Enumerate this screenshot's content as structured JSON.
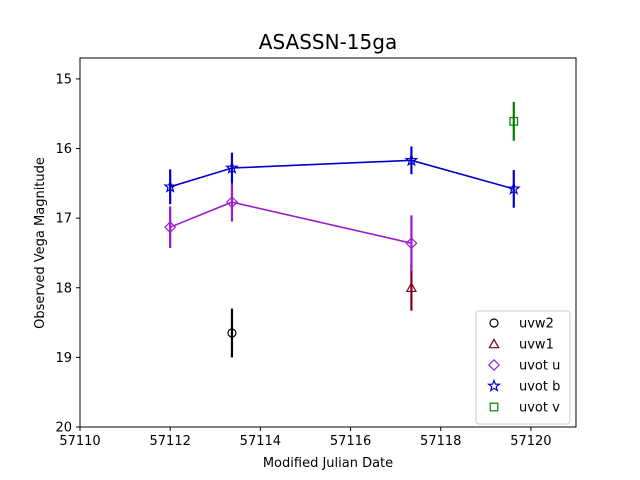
{
  "chart_data": {
    "type": "scatter",
    "title": "ASASSN-15ga",
    "xlabel": "Modified Julian Date",
    "ylabel": "Observed Vega Magnitude",
    "xlim": [
      57110,
      57121
    ],
    "ylim": [
      20,
      14.7
    ],
    "y_inverted": true,
    "x_ticks": [
      57110,
      57112,
      57114,
      57116,
      57118,
      57120
    ],
    "y_ticks": [
      15,
      16,
      17,
      18,
      19,
      20
    ],
    "grid": false,
    "legend_position": "bottom-right",
    "series": [
      {
        "name": "uvw2",
        "color": "#000000",
        "marker": "circle",
        "line": false,
        "points": [
          {
            "x": 57113.37,
            "y": 18.65,
            "err": 0.35
          }
        ]
      },
      {
        "name": "uvw1",
        "color": "#800020",
        "marker": "triangle",
        "line": false,
        "points": [
          {
            "x": 57117.35,
            "y": 18.0,
            "err": 0.33
          }
        ]
      },
      {
        "name": "uvot u",
        "color": "#9b1bd0",
        "marker": "diamond",
        "line": true,
        "points": [
          {
            "x": 57112.0,
            "y": 17.13,
            "err": 0.3
          },
          {
            "x": 57113.37,
            "y": 16.77,
            "err": 0.28
          },
          {
            "x": 57117.35,
            "y": 17.36,
            "err": 0.4
          }
        ]
      },
      {
        "name": "uvot b",
        "color": "#0000cc",
        "marker": "star",
        "line": true,
        "points": [
          {
            "x": 57112.0,
            "y": 16.55,
            "err": 0.25
          },
          {
            "x": 57113.37,
            "y": 16.28,
            "err": 0.22
          },
          {
            "x": 57117.35,
            "y": 16.17,
            "err": 0.2
          },
          {
            "x": 57119.62,
            "y": 16.58,
            "err": 0.27
          }
        ]
      },
      {
        "name": "uvot v",
        "color": "#008000",
        "marker": "square",
        "line": false,
        "points": [
          {
            "x": 57119.62,
            "y": 15.61,
            "err": 0.28
          }
        ]
      }
    ]
  }
}
